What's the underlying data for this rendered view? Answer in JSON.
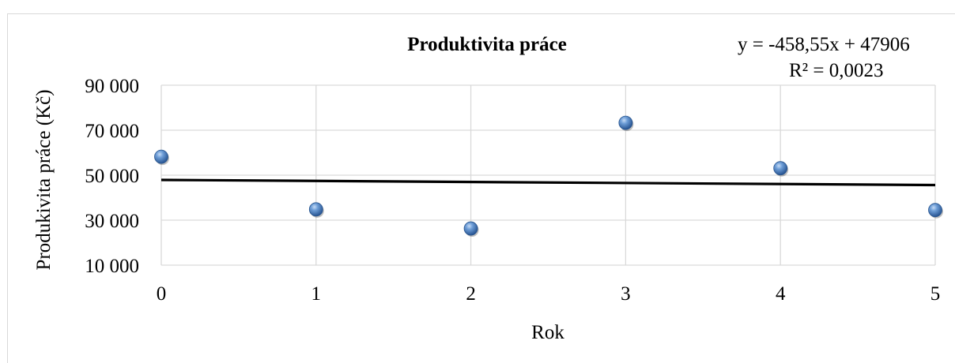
{
  "chart_data": {
    "type": "scatter",
    "title": "Produktivita práce",
    "xlabel": "Rok",
    "ylabel": "Produkivita práce (Kč)",
    "xlim": [
      0,
      5
    ],
    "ylim": [
      10000,
      90000
    ],
    "x_ticks": [
      0,
      1,
      2,
      3,
      4,
      5
    ],
    "y_ticks": [
      10000,
      30000,
      50000,
      70000,
      90000
    ],
    "x_tick_labels": [
      "0",
      "1",
      "2",
      "3",
      "4",
      "5"
    ],
    "y_tick_labels": [
      "10 000",
      "30 000",
      "50 000",
      "70 000",
      "90 000"
    ],
    "grid": true,
    "legend": "none",
    "series": [
      {
        "x": [
          0,
          1,
          2,
          3,
          4,
          5
        ],
        "y": [
          58200,
          34800,
          26300,
          73300,
          53100,
          34500
        ],
        "marker_color": "#4f81bd"
      }
    ],
    "trendline": {
      "type": "linear",
      "slope": -458.55,
      "intercept": 47906,
      "color": "#000000",
      "equation_label": "y = -458,55x + 47906",
      "r2_label": "R² = 0,0023"
    }
  }
}
